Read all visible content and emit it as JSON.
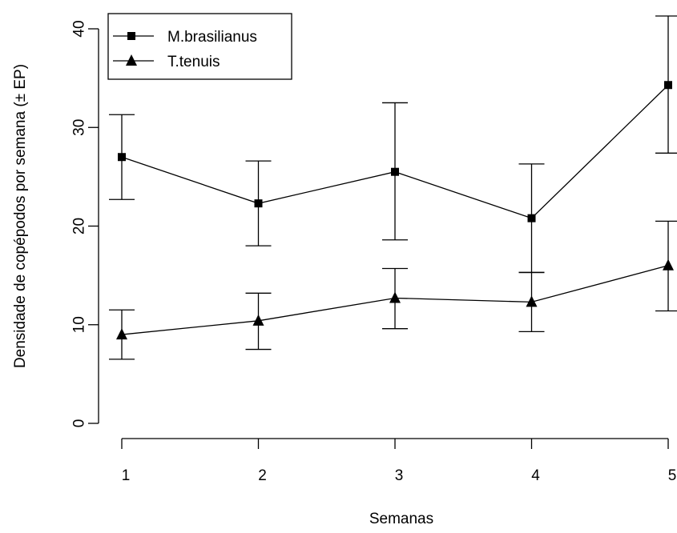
{
  "chart_data": {
    "type": "line",
    "xlabel": "Semanas",
    "ylabel": "Densidade de copépodos por semana (± EP)",
    "x": [
      1,
      2,
      3,
      4,
      5
    ],
    "x_tick_labels": [
      "1",
      "2",
      "3",
      "4",
      "5"
    ],
    "xlim": [
      1,
      5
    ],
    "ylim": [
      0,
      40
    ],
    "y_ticks": [
      0,
      10,
      20,
      30,
      40
    ],
    "y_tick_labels": [
      "0",
      "10",
      "20",
      "30",
      "40"
    ],
    "grid": false,
    "legend_position": "top-left",
    "error_bars": "± EP",
    "series": [
      {
        "name": "M.brasilianus",
        "marker": "square",
        "color": "#000000",
        "values": [
          27.0,
          22.3,
          25.5,
          20.8,
          34.3
        ],
        "err_low": [
          22.7,
          18.0,
          18.6,
          15.3,
          27.4
        ],
        "err_high": [
          31.3,
          26.6,
          32.5,
          26.3,
          41.3
        ]
      },
      {
        "name": "T.tenuis",
        "marker": "triangle",
        "color": "#000000",
        "values": [
          9.0,
          10.4,
          12.7,
          12.3,
          16.0
        ],
        "err_low": [
          6.5,
          7.5,
          9.6,
          9.3,
          11.4
        ],
        "err_high": [
          11.5,
          13.2,
          15.7,
          15.3,
          20.5
        ]
      }
    ]
  }
}
